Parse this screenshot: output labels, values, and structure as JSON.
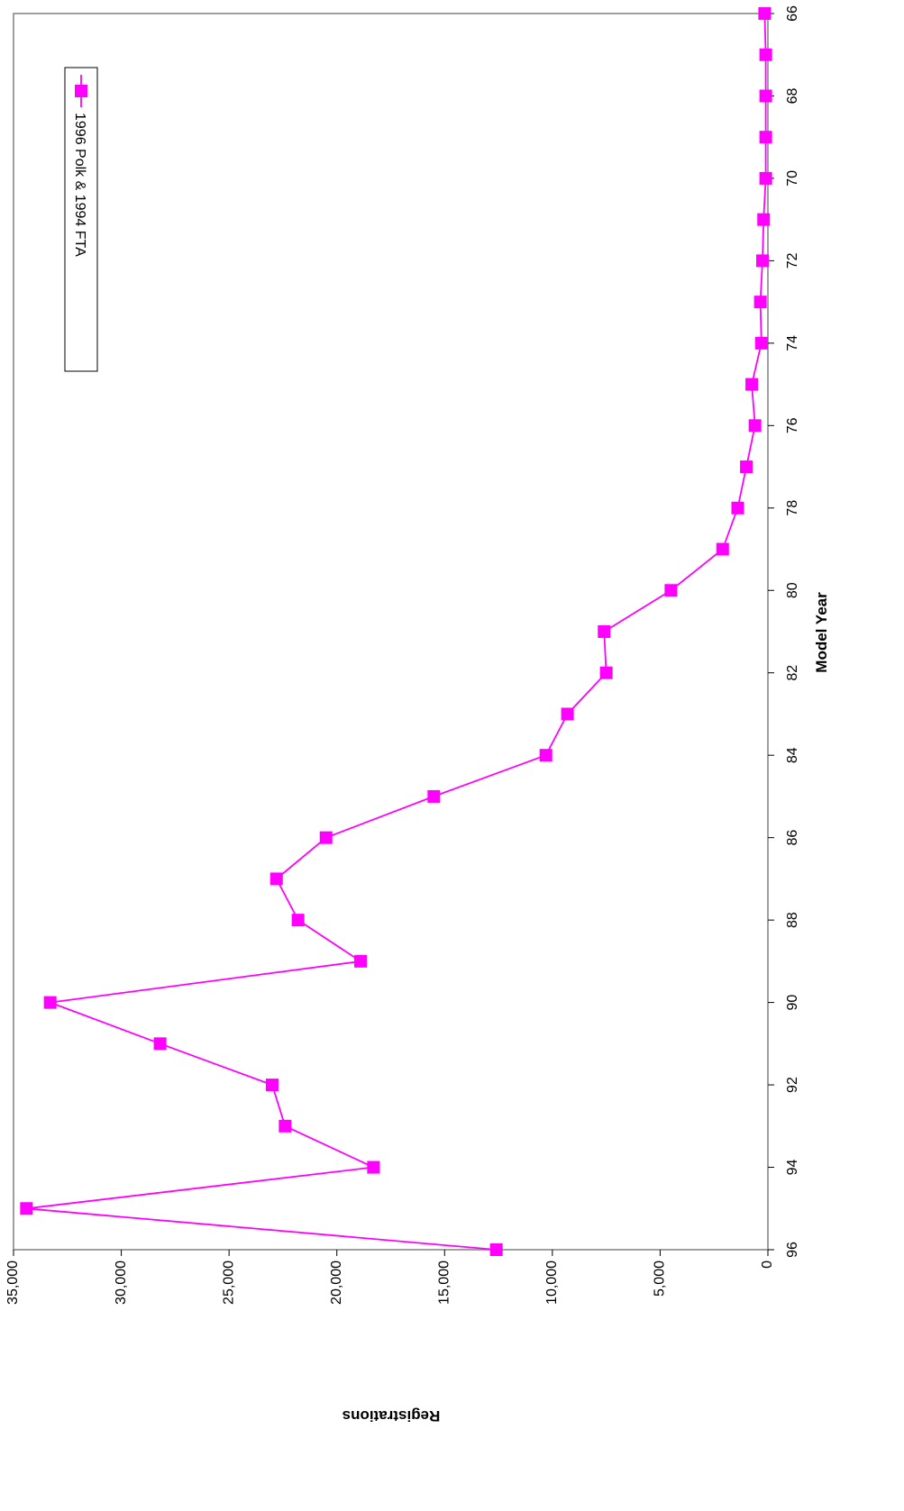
{
  "chart_data": {
    "type": "line",
    "orientation": "rotated-90-clockwise",
    "xlabel": "Model Year",
    "ylabel": "Registrations",
    "x_axis": {
      "range": [
        96,
        66
      ],
      "ticks": [
        96,
        94,
        92,
        90,
        88,
        86,
        84,
        82,
        80,
        78,
        76,
        74,
        72,
        70,
        68,
        66
      ],
      "tick_labels": [
        "96",
        "94",
        "92",
        "90",
        "88",
        "86",
        "84",
        "82",
        "80",
        "78",
        "76",
        "74",
        "72",
        "70",
        "68",
        "66"
      ]
    },
    "y_axis": {
      "range": [
        0,
        35000
      ],
      "ticks": [
        0,
        5000,
        10000,
        15000,
        20000,
        25000,
        30000,
        35000
      ],
      "tick_labels": [
        "0",
        "5,000",
        "10,000",
        "15,000",
        "20,000",
        "25,000",
        "30,000",
        "35,000"
      ]
    },
    "grid": false,
    "legend": {
      "placement": "top-right",
      "entries": [
        "1996 Polk & 1994 FTA"
      ]
    },
    "series_color": "#FF00FF",
    "series": [
      {
        "name": "1996 Polk & 1994 FTA",
        "x": [
          96,
          95,
          94,
          93,
          92,
          91,
          90,
          89,
          88,
          87,
          86,
          85,
          84,
          83,
          82,
          81,
          80,
          79,
          78,
          77,
          76,
          75,
          74,
          73,
          72,
          71,
          70,
          69,
          68,
          67,
          66
        ],
        "values": [
          12600,
          34400,
          18300,
          22400,
          23000,
          28200,
          33300,
          18900,
          21800,
          22800,
          20500,
          15500,
          10300,
          9300,
          7500,
          7600,
          4500,
          2100,
          1400,
          1000,
          600,
          750,
          300,
          350,
          250,
          200,
          100,
          100,
          100,
          100,
          150
        ]
      }
    ]
  }
}
